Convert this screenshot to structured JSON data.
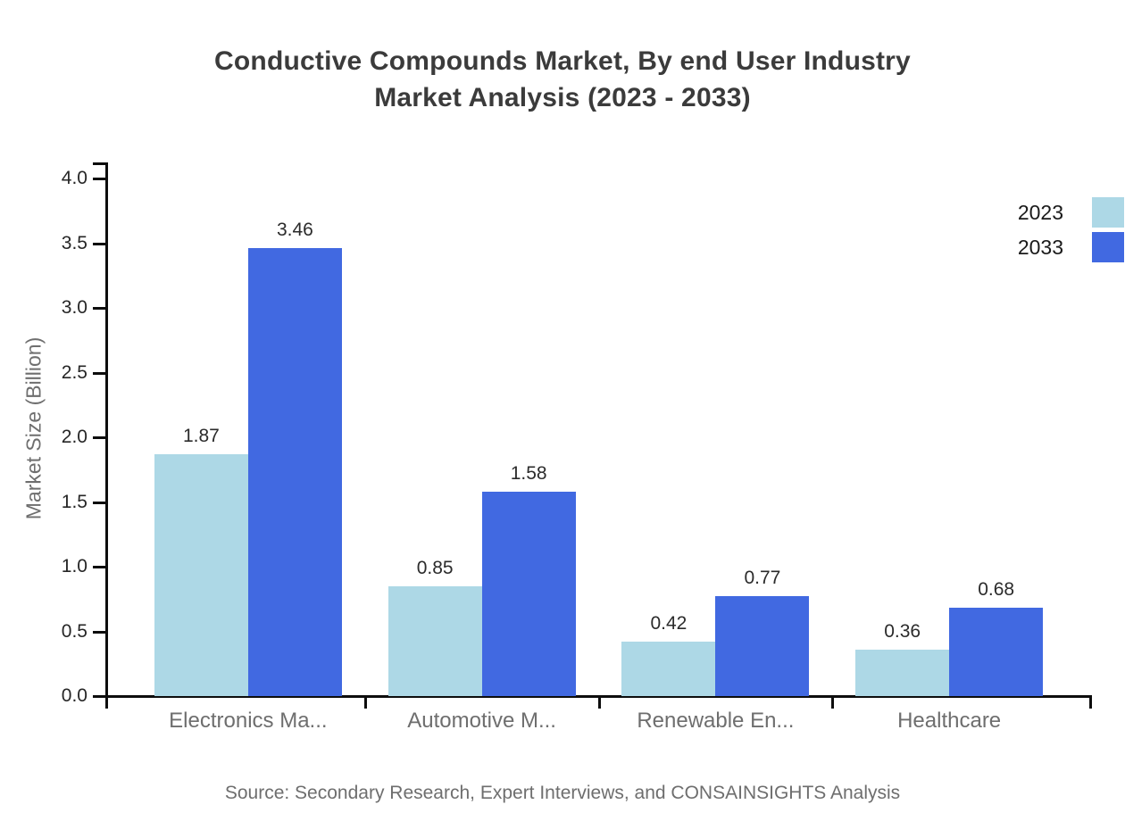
{
  "chart_data": {
    "type": "bar",
    "title_line1": "Conductive Compounds Market, By end User Industry",
    "title_line2": "Market Analysis (2023 - 2033)",
    "categories": [
      "Electronics Ma...",
      "Automotive M...",
      "Renewable En...",
      "Healthcare"
    ],
    "series": [
      {
        "name": "2023",
        "color": "#ADD8E6",
        "values": [
          1.87,
          0.85,
          0.42,
          0.36
        ]
      },
      {
        "name": "2033",
        "color": "#4169E1",
        "values": [
          3.46,
          1.58,
          0.77,
          0.68
        ]
      }
    ],
    "ylabel": "Market Size (Billion)",
    "ylim": [
      0,
      4
    ],
    "ytick_step": 0.5,
    "ytick_labels": [
      "0.0",
      "0.5",
      "1.0",
      "1.5",
      "2.0",
      "2.5",
      "3.0",
      "3.5",
      "4.0"
    ],
    "value_label_format": "2-decimals",
    "legend_position": "top-right",
    "grid": false
  },
  "source_note": "Source: Secondary Research, Expert Interviews, and CONSAINSIGHTS Analysis",
  "colors": {
    "title": "#3b3b3b",
    "axis": "#0d0d0d",
    "ytick_label": "#262626",
    "category_label": "#6e6e6e",
    "source": "#6e6e6e",
    "series_2023": "#ADD8E6",
    "series_2033": "#4169E1"
  }
}
